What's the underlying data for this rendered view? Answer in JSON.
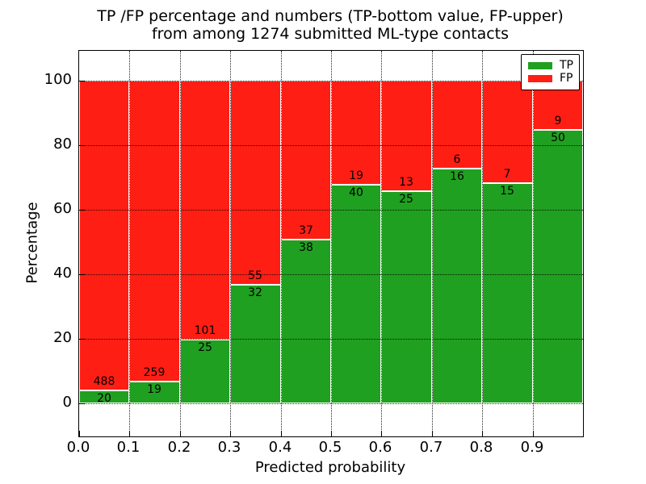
{
  "figure": {
    "title_line1": "TP /FP percentage and numbers (TP-bottom value, FP-upper)",
    "title_line2": "from among 1274 submitted ML-type contacts"
  },
  "axes": {
    "xlabel": "Predicted probability",
    "ylabel": "Percentage",
    "xtick_labels": [
      "0.0",
      "0.1",
      "0.2",
      "0.3",
      "0.4",
      "0.5",
      "0.6",
      "0.7",
      "0.8",
      "0.9"
    ],
    "ytick_values": [
      0,
      20,
      40,
      60,
      80,
      100
    ],
    "grid_style": "dotted"
  },
  "legend": {
    "position": "upper-right",
    "items": [
      {
        "label": "TP",
        "color": "#20a020"
      },
      {
        "label": "FP",
        "color": "#ff1e14"
      }
    ]
  },
  "chart_data": {
    "type": "bar",
    "stacked": true,
    "normalization": "each bin stacked to 100%",
    "title": "TP /FP percentage and numbers (TP-bottom value, FP-upper) from among 1274 submitted ML-type contacts",
    "xlabel": "Predicted probability",
    "ylabel": "Percentage",
    "bins": [
      0.0,
      0.1,
      0.2,
      0.3,
      0.4,
      0.5,
      0.6,
      0.7,
      0.8,
      0.9
    ],
    "bin_width": 0.1,
    "series": [
      {
        "name": "TP",
        "color": "#20a020",
        "counts": [
          20,
          19,
          25,
          32,
          38,
          40,
          25,
          16,
          15,
          50
        ]
      },
      {
        "name": "FP",
        "color": "#ff1e14",
        "counts": [
          488,
          259,
          101,
          55,
          37,
          19,
          13,
          6,
          7,
          9
        ]
      }
    ],
    "tp_percent": [
      3.9,
      6.8,
      19.8,
      36.8,
      50.7,
      67.8,
      65.8,
      72.7,
      68.2,
      84.7
    ],
    "total_contacts": 1274,
    "xlim": [
      0.0,
      1.0
    ],
    "ylim": [
      -10,
      109.5
    ],
    "legend_position": "upper-right",
    "grid": true
  },
  "colors": {
    "tp": "#20a020",
    "fp": "#ff1e14",
    "grid": "#000000",
    "text": "#000000",
    "background": "#ffffff"
  }
}
